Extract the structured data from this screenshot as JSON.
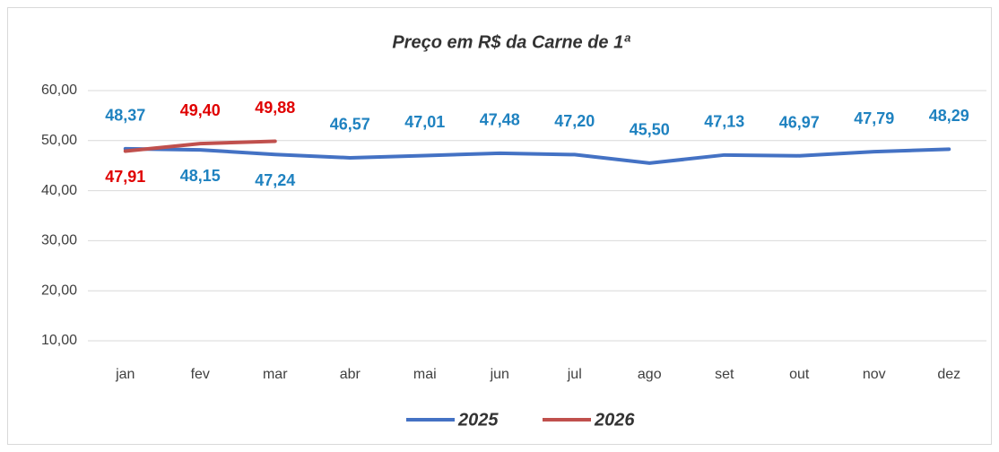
{
  "chart_data": {
    "type": "line",
    "title": "Preço em R$ da Carne de 1ª",
    "categories": [
      "jan",
      "fev",
      "mar",
      "abr",
      "mai",
      "jun",
      "jul",
      "ago",
      "set",
      "out",
      "nov",
      "dez"
    ],
    "series": [
      {
        "name": "2025",
        "color": "#4472c4",
        "label_color": "#1f82c0",
        "values": [
          48.37,
          48.15,
          47.24,
          46.57,
          47.01,
          47.48,
          47.2,
          45.5,
          47.13,
          46.97,
          47.79,
          48.29
        ],
        "value_labels": [
          "48,37",
          "48,15",
          "47,24",
          "46,57",
          "47,01",
          "47,48",
          "47,20",
          "45,50",
          "47,13",
          "46,97",
          "47,79",
          "48,29"
        ]
      },
      {
        "name": "2026",
        "color": "#c0504d",
        "label_color": "#e00000",
        "values": [
          47.91,
          49.4,
          49.88,
          null,
          null,
          null,
          null,
          null,
          null,
          null,
          null,
          null
        ],
        "value_labels": [
          "47,91",
          "49,40",
          "49,88",
          null,
          null,
          null,
          null,
          null,
          null,
          null,
          null,
          null
        ]
      }
    ],
    "ylim": [
      10,
      60
    ],
    "yticks": [
      {
        "value": 10,
        "label": "10,00"
      },
      {
        "value": 20,
        "label": "20,00"
      },
      {
        "value": 30,
        "label": "30,00"
      },
      {
        "value": 40,
        "label": "40,00"
      },
      {
        "value": 50,
        "label": "50,00"
      },
      {
        "value": 60,
        "label": "60,00"
      }
    ],
    "grid": true,
    "legend": "bottom"
  }
}
